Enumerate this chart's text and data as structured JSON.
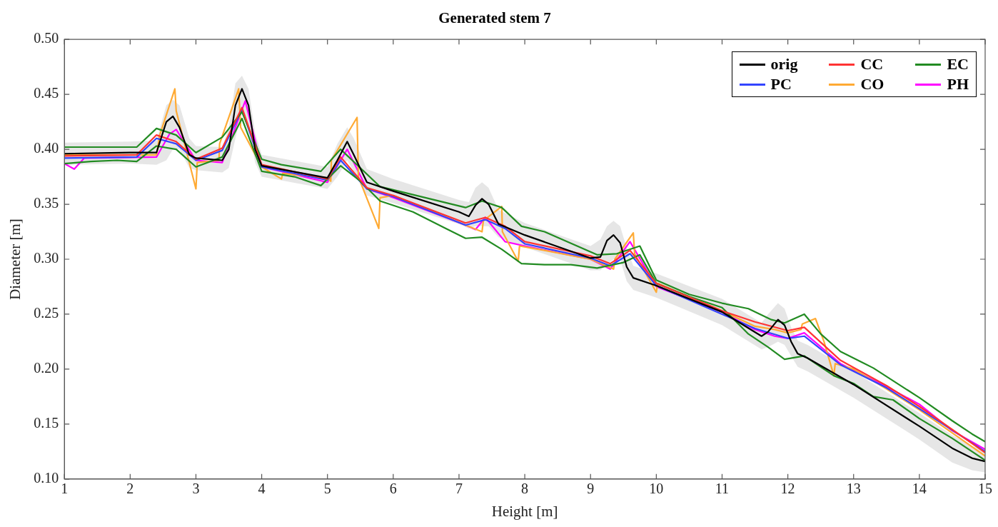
{
  "chart_data": {
    "type": "line",
    "title": "Generated stem 7",
    "xlabel": "Height [m]",
    "ylabel": "Diameter [m]",
    "xlim": [
      1,
      15
    ],
    "xticks": [
      1,
      2,
      3,
      4,
      5,
      6,
      7,
      8,
      9,
      10,
      11,
      12,
      13,
      14,
      15
    ],
    "ylim": [
      0.1,
      0.5
    ],
    "yticks": [
      {
        "value": 0.1,
        "label": "0.10"
      },
      {
        "value": 0.15,
        "label": "0.15"
      },
      {
        "value": 0.2,
        "label": "0.20"
      },
      {
        "value": 0.25,
        "label": "0.25"
      },
      {
        "value": 0.3,
        "label": "0.30"
      },
      {
        "value": 0.35,
        "label": "0.35"
      },
      {
        "value": 0.4,
        "label": "0.40"
      },
      {
        "value": 0.45,
        "label": "0.45"
      },
      {
        "value": 0.5,
        "label": "0.50"
      }
    ],
    "grid": false,
    "legend": "top right",
    "marker": "none",
    "line_style": "solid",
    "series": [
      {
        "name": "orig",
        "color": "#000000",
        "x": [
          1,
          2,
          2.4,
          2.55,
          2.65,
          2.75,
          2.9,
          3,
          3.4,
          3.5,
          3.6,
          3.7,
          3.8,
          3.9,
          4,
          5,
          5.15,
          5.3,
          5.4,
          5.6,
          6,
          7,
          7.15,
          7.25,
          7.35,
          7.45,
          7.6,
          8,
          9,
          9.15,
          9.25,
          9.35,
          9.45,
          9.55,
          9.65,
          10,
          11,
          11.6,
          11.7,
          11.85,
          11.95,
          12.05,
          12.15,
          12.3,
          13,
          14,
          14.5,
          14.8,
          15
        ],
        "values": [
          0.396,
          0.397,
          0.397,
          0.425,
          0.43,
          0.42,
          0.395,
          0.392,
          0.39,
          0.4,
          0.44,
          0.455,
          0.44,
          0.4,
          0.385,
          0.374,
          0.39,
          0.407,
          0.395,
          0.37,
          0.362,
          0.343,
          0.339,
          0.349,
          0.355,
          0.35,
          0.332,
          0.322,
          0.301,
          0.302,
          0.317,
          0.322,
          0.315,
          0.293,
          0.283,
          0.276,
          0.252,
          0.23,
          0.234,
          0.245,
          0.24,
          0.225,
          0.214,
          0.21,
          0.186,
          0.148,
          0.128,
          0.119,
          0.116
        ],
        "lower": [
          0.386,
          0.387,
          0.386,
          0.39,
          0.4,
          0.4,
          0.383,
          0.381,
          0.379,
          0.383,
          0.41,
          0.435,
          0.42,
          0.388,
          0.375,
          0.364,
          0.375,
          0.39,
          0.38,
          0.358,
          0.351,
          0.332,
          0.328,
          0.33,
          0.33,
          0.33,
          0.32,
          0.311,
          0.29,
          0.29,
          0.295,
          0.3,
          0.3,
          0.28,
          0.272,
          0.265,
          0.24,
          0.218,
          0.22,
          0.225,
          0.222,
          0.212,
          0.202,
          0.198,
          0.174,
          0.136,
          0.115,
          0.108,
          0.106
        ],
        "upper": [
          0.406,
          0.407,
          0.408,
          0.44,
          0.445,
          0.44,
          0.41,
          0.403,
          0.402,
          0.42,
          0.46,
          0.467,
          0.455,
          0.415,
          0.395,
          0.384,
          0.405,
          0.42,
          0.41,
          0.382,
          0.373,
          0.354,
          0.352,
          0.365,
          0.37,
          0.365,
          0.345,
          0.333,
          0.312,
          0.318,
          0.33,
          0.335,
          0.33,
          0.31,
          0.294,
          0.287,
          0.264,
          0.242,
          0.25,
          0.26,
          0.255,
          0.238,
          0.226,
          0.222,
          0.198,
          0.16,
          0.14,
          0.13,
          0.126
        ]
      },
      {
        "name": "CC",
        "color": "#ff3333",
        "x": [
          1,
          2.1,
          2.4,
          2.7,
          3,
          3.4,
          3.7,
          4,
          5,
          5.2,
          5.6,
          6,
          7.1,
          7.4,
          7.7,
          8,
          9,
          9.3,
          9.6,
          10,
          11,
          11.5,
          12,
          12.25,
          12.8,
          13.5,
          14,
          15
        ],
        "values": [
          0.394,
          0.395,
          0.413,
          0.407,
          0.391,
          0.401,
          0.438,
          0.386,
          0.373,
          0.393,
          0.365,
          0.358,
          0.333,
          0.338,
          0.33,
          0.316,
          0.303,
          0.296,
          0.308,
          0.278,
          0.253,
          0.243,
          0.235,
          0.238,
          0.208,
          0.185,
          0.166,
          0.124
        ]
      },
      {
        "name": "EC",
        "color": "#228b22",
        "x": [
          1,
          2.1,
          2.4,
          2.7,
          3,
          3.4,
          3.7,
          4,
          4.3,
          4.9,
          5.2,
          5.5,
          5.8,
          7.1,
          7.35,
          7.65,
          7.95,
          8.3,
          9.1,
          9.4,
          9.75,
          10,
          10.5,
          11,
          11.4,
          11.75,
          11.95,
          12.25,
          12.5,
          12.8,
          13.3,
          14,
          14.5,
          14.8,
          15
        ],
        "values": [
          0.402,
          0.402,
          0.419,
          0.413,
          0.397,
          0.411,
          0.434,
          0.391,
          0.386,
          0.38,
          0.4,
          0.383,
          0.366,
          0.347,
          0.353,
          0.347,
          0.33,
          0.325,
          0.304,
          0.305,
          0.312,
          0.281,
          0.268,
          0.26,
          0.255,
          0.245,
          0.242,
          0.25,
          0.232,
          0.216,
          0.201,
          0.174,
          0.153,
          0.141,
          0.134
        ]
      },
      {
        "color": "#228b22",
        "x": [
          1,
          1.4,
          1.8,
          2.1,
          2.4,
          2.7,
          3,
          3.4,
          3.7,
          4,
          4.5,
          4.9,
          5.2,
          5.5,
          5.8,
          6.3,
          6.8,
          7.1,
          7.35,
          7.65,
          7.95,
          8.3,
          8.7,
          9.1,
          9.5,
          9.75,
          10,
          10.5,
          11,
          11.4,
          11.7,
          11.95,
          12.25,
          12.7,
          13,
          13.3,
          13.6,
          14,
          14.5,
          15
        ],
        "values": [
          0.387,
          0.389,
          0.39,
          0.389,
          0.403,
          0.4,
          0.384,
          0.393,
          0.428,
          0.38,
          0.375,
          0.367,
          0.385,
          0.371,
          0.353,
          0.343,
          0.328,
          0.319,
          0.32,
          0.309,
          0.296,
          0.295,
          0.295,
          0.292,
          0.297,
          0.304,
          0.278,
          0.266,
          0.256,
          0.232,
          0.22,
          0.209,
          0.212,
          0.194,
          0.187,
          0.175,
          0.172,
          0.155,
          0.137,
          0.117
        ]
      },
      {
        "name": "PC",
        "color": "#3344ff",
        "x": [
          1,
          2.1,
          2.4,
          2.7,
          3,
          3.4,
          3.7,
          4,
          5,
          5.2,
          5.6,
          6,
          7.1,
          7.4,
          7.7,
          8,
          9,
          9.3,
          9.6,
          10,
          11,
          11.5,
          12,
          12.25,
          12.8,
          13.5,
          14,
          15
        ],
        "values": [
          0.392,
          0.393,
          0.41,
          0.405,
          0.39,
          0.399,
          0.436,
          0.384,
          0.372,
          0.39,
          0.364,
          0.357,
          0.331,
          0.336,
          0.328,
          0.314,
          0.301,
          0.294,
          0.305,
          0.276,
          0.25,
          0.237,
          0.228,
          0.23,
          0.204,
          0.183,
          0.164,
          0.125
        ]
      },
      {
        "name": "CO",
        "color": "#ffaa33",
        "x": [
          1,
          2.4,
          2.45,
          2.68,
          2.7,
          3,
          3.02,
          3.35,
          3.36,
          3.65,
          3.68,
          4,
          4.3,
          4.32,
          5,
          5.05,
          5.06,
          5.45,
          5.47,
          5.78,
          5.8,
          6,
          7.1,
          7.35,
          7.37,
          7.65,
          7.66,
          7.9,
          7.92,
          8.3,
          9,
          9.35,
          9.37,
          9.65,
          9.67,
          10,
          10.02,
          11,
          11.5,
          11.8,
          12,
          12.2,
          12.22,
          12.42,
          12.55,
          12.7,
          12.72,
          13,
          13.5,
          14,
          15
        ],
        "values": [
          0.395,
          0.395,
          0.413,
          0.455,
          0.435,
          0.364,
          0.388,
          0.39,
          0.405,
          0.455,
          0.42,
          0.384,
          0.373,
          0.378,
          0.374,
          0.371,
          0.39,
          0.429,
          0.375,
          0.328,
          0.356,
          0.358,
          0.331,
          0.325,
          0.335,
          0.348,
          0.325,
          0.298,
          0.312,
          0.308,
          0.3,
          0.291,
          0.3,
          0.324,
          0.305,
          0.27,
          0.278,
          0.253,
          0.239,
          0.236,
          0.233,
          0.236,
          0.241,
          0.246,
          0.225,
          0.194,
          0.205,
          0.2,
          0.182,
          0.163,
          0.121
        ]
      },
      {
        "name": "PH",
        "color": "#ff00ff",
        "x": [
          1,
          1.15,
          1.3,
          2.4,
          2.6,
          2.7,
          3,
          3.4,
          3.75,
          4,
          5,
          5.3,
          5.6,
          6,
          7.1,
          7.25,
          7.4,
          7.7,
          8,
          9,
          9.3,
          9.6,
          10,
          11,
          11.5,
          11.8,
          12,
          12.25,
          12.8,
          13.5,
          14,
          14.5,
          15
        ],
        "values": [
          0.387,
          0.382,
          0.392,
          0.393,
          0.414,
          0.418,
          0.39,
          0.388,
          0.444,
          0.384,
          0.37,
          0.4,
          0.364,
          0.356,
          0.331,
          0.327,
          0.338,
          0.316,
          0.312,
          0.3,
          0.291,
          0.316,
          0.275,
          0.252,
          0.236,
          0.23,
          0.228,
          0.233,
          0.205,
          0.184,
          0.168,
          0.144,
          0.127
        ]
      }
    ]
  }
}
